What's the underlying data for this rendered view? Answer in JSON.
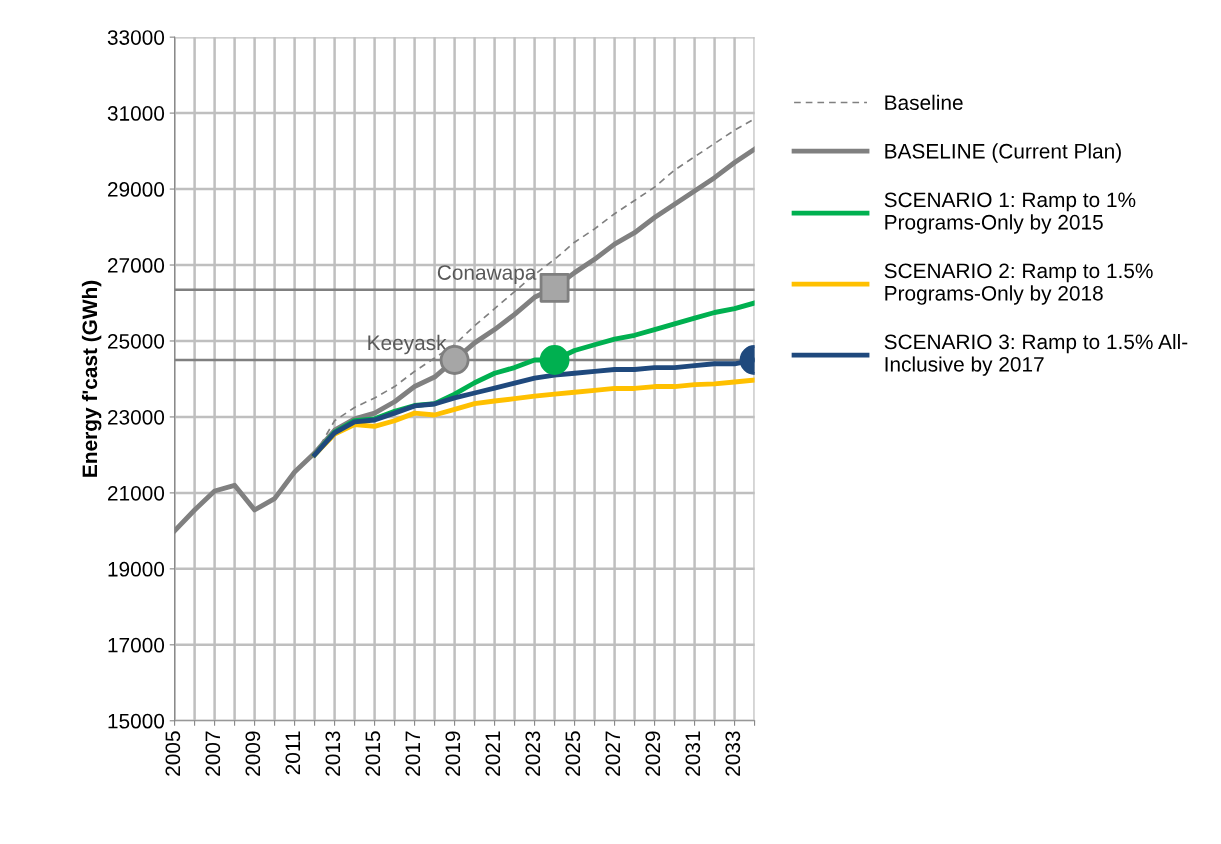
{
  "chart_data": {
    "type": "line",
    "ylabel": "Energy f'cast (GWh)",
    "xlim": [
      2005,
      2034
    ],
    "xticks": [
      2005,
      {
        "value": 2006,
        "label": null
      },
      2007,
      {
        "value": 2008,
        "label": null
      },
      2009,
      {
        "value": 2010,
        "label": null
      },
      2011,
      {
        "value": 2012,
        "label": null
      },
      2013,
      {
        "value": 2014,
        "label": null
      },
      2015,
      {
        "value": 2016,
        "label": null
      },
      2017,
      {
        "value": 2018,
        "label": null
      },
      2019,
      {
        "value": 2020,
        "label": null
      },
      2021,
      {
        "value": 2022,
        "label": null
      },
      2023,
      {
        "value": 2024,
        "label": null
      },
      2025,
      {
        "value": 2026,
        "label": null
      },
      2027,
      {
        "value": 2028,
        "label": null
      },
      2029,
      {
        "value": 2030,
        "label": null
      },
      2031,
      {
        "value": 2032,
        "label": null
      },
      2033,
      {
        "value": 2034,
        "label": null
      }
    ],
    "ylim": [
      15000,
      33000
    ],
    "yticks": [
      15000,
      17000,
      19000,
      21000,
      23000,
      25000,
      27000,
      29000,
      31000,
      33000
    ],
    "grid": true,
    "legend": "right",
    "marker": "none",
    "ref_lines": [
      {
        "axis": "y",
        "value": 24500,
        "label": "Keeyask",
        "color": "#808080"
      },
      {
        "axis": "y",
        "value": 26350,
        "label": "Conawapa",
        "color": "#808080"
      }
    ],
    "series": [
      {
        "name": "Baseline",
        "color": "#808080",
        "line_style": "dashed",
        "x": [
          2012,
          2013,
          2014,
          2015,
          2016,
          2017,
          2018,
          2019,
          2020,
          2021,
          2022,
          2023,
          2024,
          2025,
          2026,
          2027,
          2028,
          2029,
          2030,
          2031,
          2032,
          2033,
          2034
        ],
        "values": [
          22000,
          22900,
          23250,
          23500,
          23800,
          24200,
          24550,
          24900,
          25400,
          25850,
          26300,
          26750,
          27150,
          27600,
          27950,
          28350,
          28700,
          29050,
          29500,
          29850,
          30200,
          30550,
          30850
        ]
      },
      {
        "name": "BASELINE (Current Plan)",
        "color": "#808080",
        "line_style": "solid",
        "x": [
          2005,
          2006,
          2007,
          2008,
          2009,
          2010,
          2011,
          2012,
          2013,
          2014,
          2015,
          2016,
          2017,
          2018,
          2019,
          2020,
          2021,
          2022,
          2023,
          2024,
          2025,
          2026,
          2027,
          2028,
          2029,
          2030,
          2031,
          2032,
          2033,
          2034
        ],
        "values": [
          20000,
          20550,
          21050,
          21200,
          20550,
          20850,
          21550,
          22050,
          22650,
          22950,
          23100,
          23400,
          23800,
          24050,
          24500,
          24950,
          25300,
          25700,
          26150,
          26400,
          26800,
          27150,
          27550,
          27850,
          28250,
          28600,
          28950,
          29300,
          29700,
          30050
        ]
      },
      {
        "name": "SCENARIO 1: Ramp to 1%\nPrograms-Only by 2015",
        "color": "#00b050",
        "line_style": "solid",
        "x": [
          2012,
          2013,
          2014,
          2015,
          2016,
          2017,
          2018,
          2019,
          2020,
          2021,
          2022,
          2023,
          2024,
          2025,
          2026,
          2027,
          2028,
          2029,
          2030,
          2031,
          2032,
          2033,
          2034
        ],
        "values": [
          22000,
          22600,
          22900,
          22950,
          23150,
          23300,
          23350,
          23600,
          23900,
          24150,
          24300,
          24500,
          24500,
          24750,
          24900,
          25050,
          25150,
          25300,
          25450,
          25600,
          25750,
          25850,
          26000
        ]
      },
      {
        "name": "SCENARIO 2: Ramp to 1.5%\nPrograms-Only by 2018",
        "color": "#ffc000",
        "line_style": "solid",
        "x": [
          2012,
          2013,
          2014,
          2015,
          2016,
          2017,
          2018,
          2019,
          2020,
          2021,
          2022,
          2023,
          2024,
          2025,
          2026,
          2027,
          2028,
          2029,
          2030,
          2031,
          2032,
          2033,
          2034
        ],
        "values": [
          22000,
          22550,
          22800,
          22750,
          22900,
          23100,
          23050,
          23200,
          23350,
          23420,
          23480,
          23550,
          23600,
          23650,
          23700,
          23750,
          23750,
          23800,
          23800,
          23850,
          23870,
          23920,
          23970
        ]
      },
      {
        "name": "SCENARIO 3: Ramp to 1.5% All-\nInclusive by 2017",
        "color": "#1f497d",
        "line_style": "solid",
        "x": [
          2012,
          2013,
          2014,
          2015,
          2016,
          2017,
          2018,
          2019,
          2020,
          2021,
          2022,
          2023,
          2024,
          2025,
          2026,
          2027,
          2028,
          2029,
          2030,
          2031,
          2032,
          2033,
          2034
        ],
        "values": [
          22000,
          22580,
          22870,
          22920,
          23100,
          23290,
          23340,
          23500,
          23630,
          23760,
          23890,
          24020,
          24100,
          24150,
          24200,
          24250,
          24250,
          24300,
          24300,
          24350,
          24400,
          24400,
          24500
        ]
      },
      {
        "type": "scatter",
        "marker": "circle",
        "color": "#a6a6a6",
        "x": [
          2019
        ],
        "values": [
          24500
        ]
      },
      {
        "type": "scatter",
        "marker": "square",
        "color": "#a6a6a6",
        "x": [
          2024
        ],
        "values": [
          26400
        ]
      },
      {
        "type": "scatter",
        "marker": "circle",
        "color": "#00b050",
        "x": [
          2024
        ],
        "values": [
          24500
        ]
      },
      {
        "type": "scatter",
        "marker": "circle",
        "color": "#1f497d",
        "x": [
          2034
        ],
        "values": [
          24500
        ]
      }
    ]
  }
}
